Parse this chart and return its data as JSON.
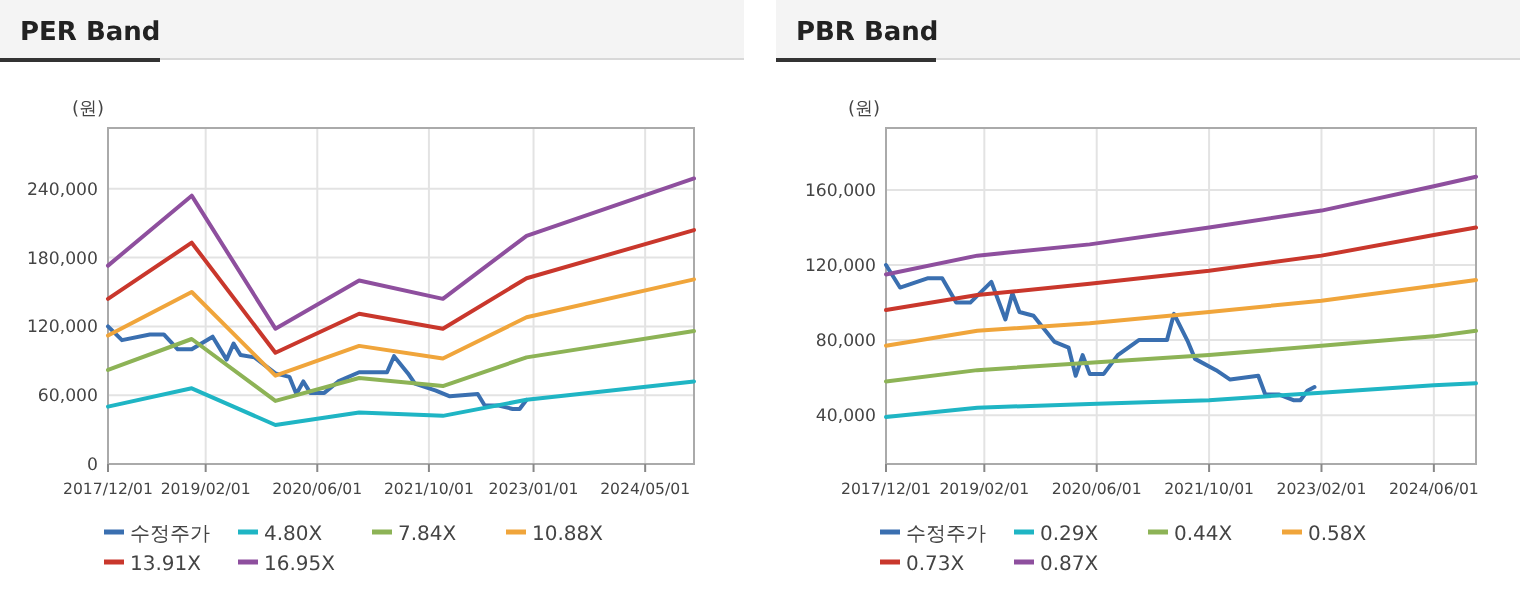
{
  "chart_data": [
    {
      "type": "line",
      "title": "PER Band",
      "ylabel": "(원)",
      "grid": true,
      "legend": "bottom",
      "xlim": [
        "2017-12",
        "2024-12"
      ],
      "ylim": [
        0,
        293000
      ],
      "xticks": [
        {
          "value": "2017-12-01",
          "label": "2017/12/01"
        },
        {
          "value": "2019-02-01",
          "label": "2019/02/01"
        },
        {
          "value": "2020-06-01",
          "label": "2020/06/01"
        },
        {
          "value": "2021-10-01",
          "label": "2021/10/01"
        },
        {
          "value": "2023-01-01",
          "label": "2023/01/01"
        },
        {
          "value": "2024-05-01",
          "label": "2024/05/01"
        }
      ],
      "yticks": [
        0,
        {
          "value": 60000,
          "label": "60,000"
        },
        {
          "value": 120000,
          "label": "120,000"
        },
        {
          "value": 180000,
          "label": "180,000"
        },
        {
          "value": 240000,
          "label": "240,000"
        }
      ],
      "x": [
        "2017-12",
        "2018-12",
        "2019-12",
        "2020-12",
        "2021-12",
        "2022-12",
        "2024-12"
      ],
      "series": [
        {
          "name": "수정주가",
          "color": "#3a6fb0",
          "x": [
            "2017-12",
            "2018-02",
            "2018-06",
            "2018-08",
            "2018-10",
            "2018-12",
            "2019-03",
            "2019-05",
            "2019-06",
            "2019-07",
            "2019-09",
            "2019-12",
            "2020-02",
            "2020-03",
            "2020-04",
            "2020-05",
            "2020-07",
            "2020-09",
            "2020-12",
            "2021-04",
            "2021-05",
            "2021-07",
            "2021-08",
            "2021-11",
            "2022-01",
            "2022-05",
            "2022-06",
            "2022-08",
            "2022-10",
            "2022-11",
            "2022-12"
          ],
          "values": [
            120000,
            108000,
            113000,
            113000,
            100000,
            100000,
            111000,
            91000,
            105000,
            95000,
            93000,
            79000,
            76000,
            61000,
            72000,
            62000,
            62000,
            72000,
            80000,
            80000,
            94000,
            79000,
            70000,
            64000,
            59000,
            61000,
            51000,
            51000,
            48000,
            48000,
            56000
          ]
        },
        {
          "name": "4.80X",
          "color": "#1fb5c4",
          "values": [
            50000,
            66000,
            34000,
            45000,
            42000,
            56000,
            72000
          ]
        },
        {
          "name": "7.84X",
          "color": "#8db356",
          "values": [
            82000,
            109000,
            55000,
            75000,
            68000,
            93000,
            116000
          ]
        },
        {
          "name": "10.88X",
          "color": "#f0a53b",
          "values": [
            112000,
            150000,
            77000,
            103000,
            92000,
            128000,
            161000
          ]
        },
        {
          "name": "13.91X",
          "color": "#c9372c",
          "values": [
            144000,
            193000,
            97000,
            131000,
            118000,
            162000,
            204000
          ]
        },
        {
          "name": "16.95X",
          "color": "#8e4f9e",
          "values": [
            173000,
            234000,
            118000,
            160000,
            144000,
            199000,
            249000
          ]
        }
      ]
    },
    {
      "type": "line",
      "title": "PBR Band",
      "ylabel": "(원)",
      "grid": true,
      "legend": "bottom",
      "xlim": [
        "2017-12",
        "2024-12"
      ],
      "ylim": [
        14000,
        193000
      ],
      "xticks": [
        {
          "value": "2017-12-01",
          "label": "2017/12/01"
        },
        {
          "value": "2019-02-01",
          "label": "2019/02/01"
        },
        {
          "value": "2020-06-01",
          "label": "2020/06/01"
        },
        {
          "value": "2021-10-01",
          "label": "2021/10/01"
        },
        {
          "value": "2023-02-01",
          "label": "2023/02/01"
        },
        {
          "value": "2024-06-01",
          "label": "2024/06/01"
        }
      ],
      "yticks": [
        {
          "value": 40000,
          "label": "40,000"
        },
        {
          "value": 80000,
          "label": "80,000"
        },
        {
          "value": 120000,
          "label": "120,000"
        },
        {
          "value": 160000,
          "label": "160,000"
        }
      ],
      "x": [
        "2017-12",
        "2019-01",
        "2020-05",
        "2021-10",
        "2023-02",
        "2024-06",
        "2024-12"
      ],
      "series": [
        {
          "name": "수정주가",
          "color": "#3a6fb0",
          "x": [
            "2017-12",
            "2018-02",
            "2018-06",
            "2018-08",
            "2018-10",
            "2018-12",
            "2019-03",
            "2019-05",
            "2019-06",
            "2019-07",
            "2019-09",
            "2019-12",
            "2020-02",
            "2020-03",
            "2020-04",
            "2020-05",
            "2020-07",
            "2020-09",
            "2020-12",
            "2021-04",
            "2021-05",
            "2021-07",
            "2021-08",
            "2021-11",
            "2022-01",
            "2022-05",
            "2022-06",
            "2022-08",
            "2022-10",
            "2022-11",
            "2022-12",
            "2023-01"
          ],
          "values": [
            120000,
            108000,
            113000,
            113000,
            100000,
            100000,
            111000,
            91000,
            105000,
            95000,
            93000,
            79000,
            76000,
            61000,
            72000,
            62000,
            62000,
            72000,
            80000,
            80000,
            94000,
            79000,
            70000,
            64000,
            59000,
            61000,
            51000,
            51000,
            48000,
            48000,
            53000,
            55000
          ]
        },
        {
          "name": "0.29X",
          "color": "#1fb5c4",
          "values": [
            39000,
            44000,
            46000,
            48000,
            52000,
            56000,
            57000
          ]
        },
        {
          "name": "0.44X",
          "color": "#8db356",
          "values": [
            58000,
            64000,
            68000,
            72000,
            77000,
            82000,
            85000
          ]
        },
        {
          "name": "0.58X",
          "color": "#f0a53b",
          "values": [
            77000,
            85000,
            89000,
            95000,
            101000,
            109000,
            112000
          ]
        },
        {
          "name": "0.73X",
          "color": "#c9372c",
          "values": [
            96000,
            104000,
            110000,
            117000,
            125000,
            136000,
            140000
          ]
        },
        {
          "name": "0.87X",
          "color": "#8e4f9e",
          "values": [
            115000,
            125000,
            131000,
            140000,
            149000,
            162000,
            167000
          ]
        }
      ]
    }
  ]
}
